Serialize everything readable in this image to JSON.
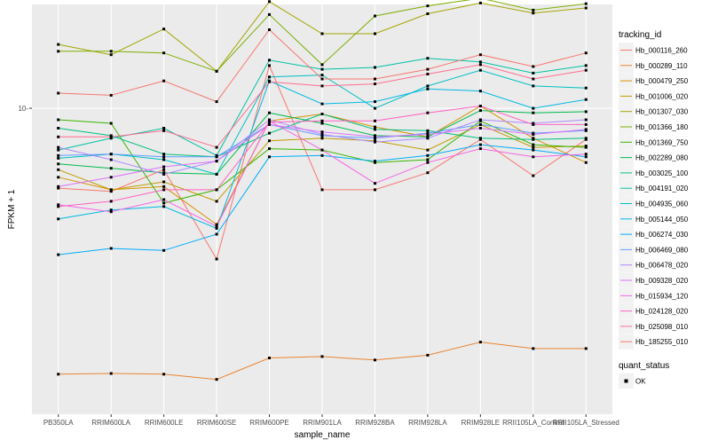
{
  "chart_data": {
    "type": "line",
    "xlabel": "sample_name",
    "ylabel": "FPKM + 1",
    "y_scale": "log10",
    "ylim": [
      2.55,
      15.9
    ],
    "y_ticks": [
      10
    ],
    "y_tick_labels": [
      "10-"
    ],
    "grid": true,
    "legend_position": "right",
    "legend_title": "tracking_id",
    "legend2_title": "quant_status",
    "legend2_entries": [
      "OK"
    ],
    "categories": [
      "PB350LA",
      "RRIM600LA",
      "RRIM600LE",
      "RRIM600SE",
      "RRIM600PE",
      "RRIM901LA",
      "RRIM928BA",
      "RRIM928LA",
      "RRIM928LE",
      "RRII105LA_Control",
      "RRII105LA_Stressed"
    ],
    "series": [
      {
        "name": "Hb_000116_260",
        "color": "#F8766D",
        "values": [
          7.0,
          6.9,
          7.6,
          5.1,
          12.1,
          6.95,
          6.95,
          7.5,
          8.7,
          7.4,
          8.7
        ]
      },
      {
        "name": "Hb_000289_110",
        "color": "#EA8331",
        "values": [
          3.05,
          3.06,
          3.05,
          2.98,
          3.28,
          3.3,
          3.25,
          3.32,
          3.52,
          3.42,
          3.42
        ]
      },
      {
        "name": "Hb_000479_250",
        "color": "#D89000",
        "values": [
          7.35,
          6.95,
          7.05,
          5.95,
          9.45,
          9.75,
          9.2,
          8.8,
          10.1,
          8.75,
          7.85
        ]
      },
      {
        "name": "Hb_001006_020",
        "color": "#C09B00",
        "values": [
          7.6,
          6.95,
          7.2,
          6.6,
          8.65,
          8.75,
          8.65,
          8.3,
          9.3,
          8.4,
          8.45
        ]
      },
      {
        "name": "Hb_001307_030",
        "color": "#A3A500",
        "values": [
          13.3,
          12.7,
          14.25,
          11.8,
          16.1,
          13.95,
          13.95,
          15.25,
          16.0,
          15.3,
          15.65
        ]
      },
      {
        "name": "Hb_001366_180",
        "color": "#7CAE00",
        "values": [
          12.9,
          12.9,
          12.8,
          11.8,
          15.2,
          12.15,
          15.1,
          15.8,
          16.35,
          15.5,
          15.95
        ]
      },
      {
        "name": "Hb_001369_750",
        "color": "#39B600",
        "values": [
          9.5,
          9.35,
          6.55,
          6.95,
          8.35,
          8.3,
          7.85,
          7.95,
          9.45,
          8.5,
          8.4
        ]
      },
      {
        "name": "Hb_002289_080",
        "color": "#00BB4E",
        "values": [
          7.8,
          7.65,
          7.5,
          7.45,
          9.8,
          9.35,
          8.85,
          8.8,
          9.9,
          9.8,
          9.85
        ]
      },
      {
        "name": "Hb_003025_100",
        "color": "#00BF7D",
        "values": [
          9.15,
          8.85,
          8.15,
          8.05,
          8.95,
          9.75,
          9.1,
          9.05,
          8.75,
          8.7,
          8.75
        ]
      },
      {
        "name": "Hb_004191_020",
        "color": "#00C1A3",
        "values": [
          8.3,
          8.75,
          9.15,
          8.1,
          12.4,
          11.9,
          12.0,
          12.5,
          12.3,
          11.7,
          12.1
        ]
      },
      {
        "name": "Hb_004935_060",
        "color": "#00BFC4",
        "values": [
          8.0,
          8.15,
          7.95,
          7.45,
          11.5,
          11.6,
          10.0,
          11.05,
          11.85,
          11.05,
          10.95
        ]
      },
      {
        "name": "Hb_005144_050",
        "color": "#00B9E3",
        "values": [
          6.1,
          6.35,
          6.45,
          5.85,
          11.3,
          10.2,
          10.3,
          10.9,
          10.8,
          10.0,
          10.4
        ]
      },
      {
        "name": "Hb_006274_030",
        "color": "#00ADFA",
        "values": [
          5.2,
          5.35,
          5.3,
          5.7,
          8.05,
          8.1,
          7.9,
          8.1,
          8.5,
          8.3,
          8.05
        ]
      },
      {
        "name": "Hb_006469_080",
        "color": "#619CFF",
        "values": [
          8.1,
          8.15,
          8.05,
          8.05,
          9.3,
          8.85,
          8.75,
          8.95,
          9.3,
          8.95,
          9.05
        ]
      },
      {
        "name": "Hb_006478_020",
        "color": "#AE87FF",
        "values": [
          8.4,
          7.95,
          7.45,
          7.9,
          9.5,
          8.9,
          8.6,
          8.75,
          9.5,
          9.35,
          9.5
        ]
      },
      {
        "name": "Hb_009328_020",
        "color": "#DB72FB",
        "values": [
          7.05,
          7.35,
          7.7,
          7.9,
          9.3,
          9.0,
          8.8,
          8.9,
          9.15,
          8.9,
          9.1
        ]
      },
      {
        "name": "Hb_015934_120",
        "color": "#F564E3",
        "values": [
          6.5,
          6.3,
          6.65,
          5.9,
          9.45,
          8.3,
          7.15,
          7.85,
          8.35,
          8.05,
          8.15
        ]
      },
      {
        "name": "Hb_024128_020",
        "color": "#FF61C3",
        "values": [
          6.45,
          6.6,
          6.95,
          6.95,
          9.4,
          9.45,
          9.45,
          9.8,
          10.1,
          9.3,
          9.3
        ]
      },
      {
        "name": "Hb_025098_010",
        "color": "#FF6C91",
        "values": [
          8.8,
          8.8,
          9.05,
          8.4,
          11.25,
          11.05,
          11.15,
          11.65,
          12.15,
          11.4,
          11.85
        ]
      },
      {
        "name": "Hb_185255_010",
        "color": "#F8766D",
        "values": [
          10.7,
          10.6,
          11.3,
          10.3,
          14.2,
          11.4,
          11.4,
          11.9,
          12.7,
          12.05,
          12.8
        ]
      }
    ]
  }
}
